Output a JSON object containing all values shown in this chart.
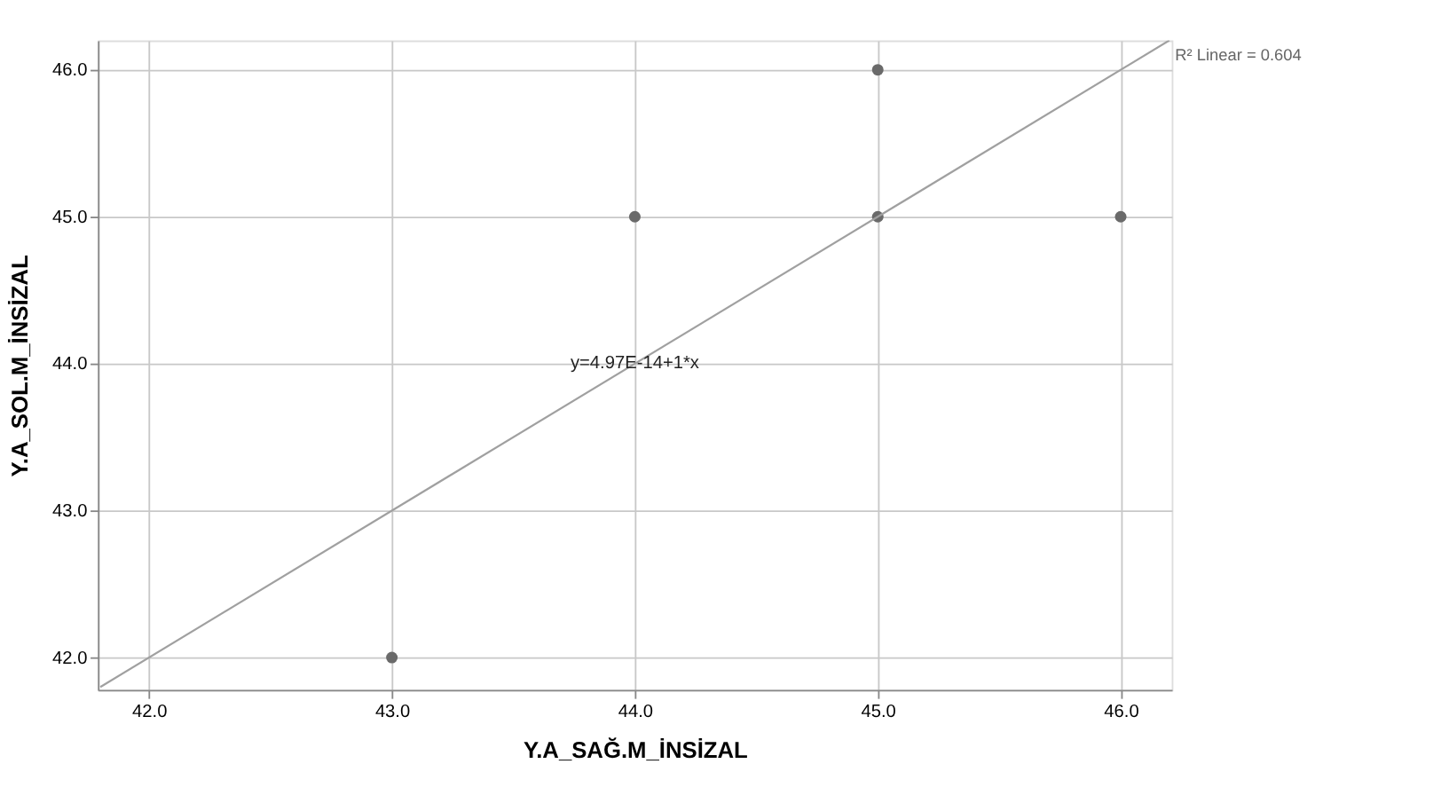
{
  "chart_data": {
    "type": "scatter",
    "xlabel": "Y.A_SAĞ.M_İNSİZAL",
    "ylabel": "Y.A_SOL.M_İNSİZAL",
    "series": [
      {
        "marker": "circle",
        "color": "#6a6a6a",
        "x": [
          43,
          44,
          45,
          45,
          46
        ],
        "values": [
          42,
          45,
          45,
          46,
          45
        ]
      },
      {
        "type": "line",
        "color": "#a0a0a0",
        "x": [
          41.8,
          46.2
        ],
        "values": [
          41.8,
          46.2
        ]
      }
    ],
    "xlim": [
      41.79,
      46.21
    ],
    "ylim": [
      41.78,
      46.2
    ],
    "xticks": [
      {
        "value": 42,
        "label": "42.0"
      },
      {
        "value": 43,
        "label": "43.0"
      },
      {
        "value": 44,
        "label": "44.0"
      },
      {
        "value": 45,
        "label": "45.0"
      },
      {
        "value": 46,
        "label": "46.0"
      }
    ],
    "yticks": [
      {
        "value": 42,
        "label": "42.0"
      },
      {
        "value": 43,
        "label": "43.0"
      },
      {
        "value": 44,
        "label": "44.0"
      },
      {
        "value": 45,
        "label": "45.0"
      },
      {
        "value": 46,
        "label": "46.0"
      }
    ],
    "annotations": [
      {
        "text": "y=4.97E-14+1*x",
        "x": 44,
        "y": 44
      },
      "R² Linear = 0.604"
    ],
    "grid": true,
    "line_style": "solid"
  }
}
